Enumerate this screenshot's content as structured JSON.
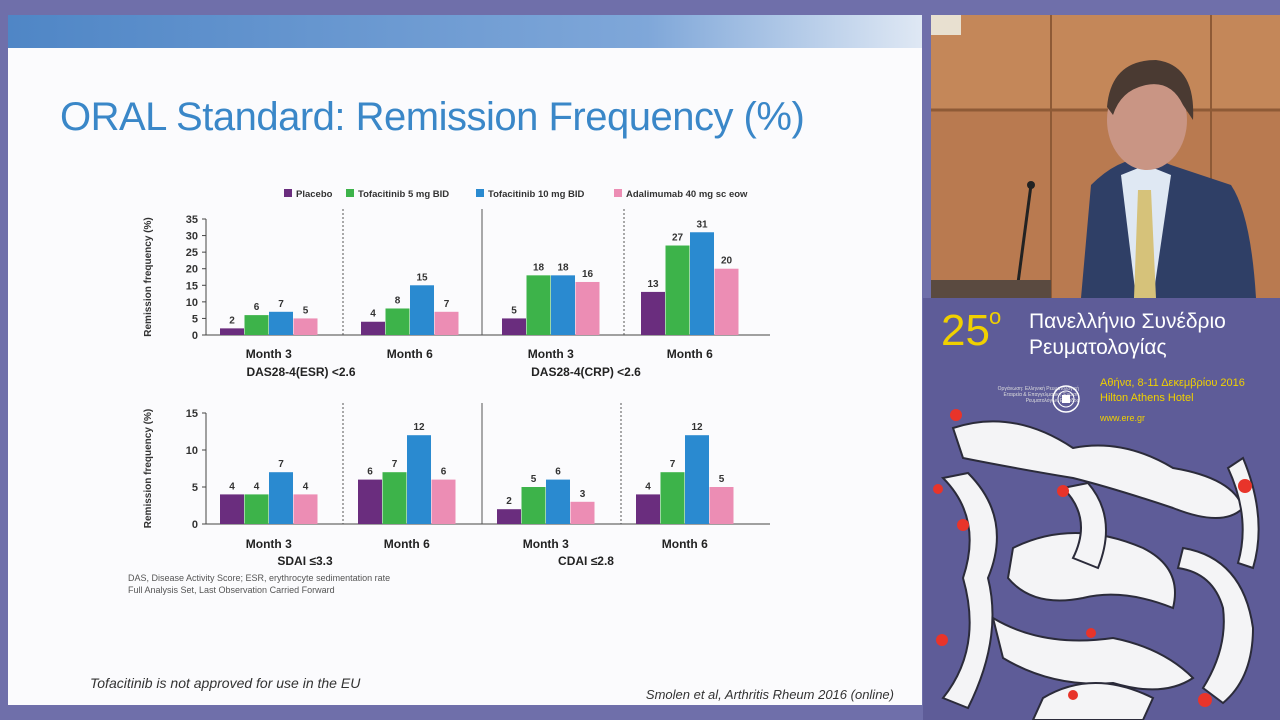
{
  "slide": {
    "title": "ORAL Standard: Remission Frequency (%)",
    "footnote1": "DAS, Disease Activity Score; ESR, erythrocyte sedimentation rate",
    "footnote2": "Full Analysis Set, Last Observation Carried Forward",
    "disclaimer": "Tofacitinib is not approved for use in the EU",
    "reference": "Smolen et al, Arthritis Rheum 2016 (online)"
  },
  "conference": {
    "number": "25",
    "superscript": "o",
    "title_line1": "Πανελλήνιο Συνέδριο",
    "title_line2": "Ρευματολογίας",
    "organizer": "Οργάνωση: Ελληνική Ρευματολογική Εταιρεία & Επαγγελματική Ένωση Ρευματολόγων Ελλάδος",
    "date": "Αθήνα, 8-11 Δεκεμβρίου 2016",
    "venue": "Hilton Athens Hotel",
    "website": "www.ere.gr",
    "accent_color": "#f0d000"
  },
  "chart_data": {
    "type": "bar",
    "legend_position": "top",
    "series_names": [
      "Placebo",
      "Tofacitinib 5 mg BID",
      "Tofacitinib 10 mg BID",
      "Adalimumab 40 mg sc eow"
    ],
    "series_colors": [
      "#6a2d7e",
      "#3db34a",
      "#2a8ad0",
      "#ec8db4"
    ],
    "ylabel": "Remission frequency (%)",
    "panels": [
      {
        "ylim": [
          0,
          35
        ],
        "yticks": [
          0,
          5,
          10,
          15,
          20,
          25,
          30,
          35
        ],
        "groups": [
          {
            "measure": "DAS28-4(ESR) <2.6",
            "categories": [
              "Month 3",
              "Month 6"
            ],
            "values": [
              [
                2,
                6,
                7,
                5
              ],
              [
                4,
                8,
                15,
                7
              ]
            ]
          },
          {
            "measure": "DAS28-4(CRP) <2.6",
            "categories": [
              "Month 3",
              "Month 6"
            ],
            "values": [
              [
                5,
                18,
                18,
                16
              ],
              [
                13,
                27,
                31,
                20
              ]
            ]
          }
        ]
      },
      {
        "ylim": [
          0,
          15
        ],
        "yticks": [
          0,
          5,
          10,
          15
        ],
        "groups": [
          {
            "measure": "SDAI ≤3.3",
            "categories": [
              "Month 3",
              "Month 6"
            ],
            "values": [
              [
                4,
                4,
                7,
                4
              ],
              [
                6,
                7,
                12,
                6
              ]
            ]
          },
          {
            "measure": "CDAI ≤2.8",
            "categories": [
              "Month 3",
              "Month 6"
            ],
            "values": [
              [
                2,
                5,
                6,
                3
              ],
              [
                4,
                7,
                12,
                5
              ]
            ]
          }
        ]
      }
    ]
  }
}
